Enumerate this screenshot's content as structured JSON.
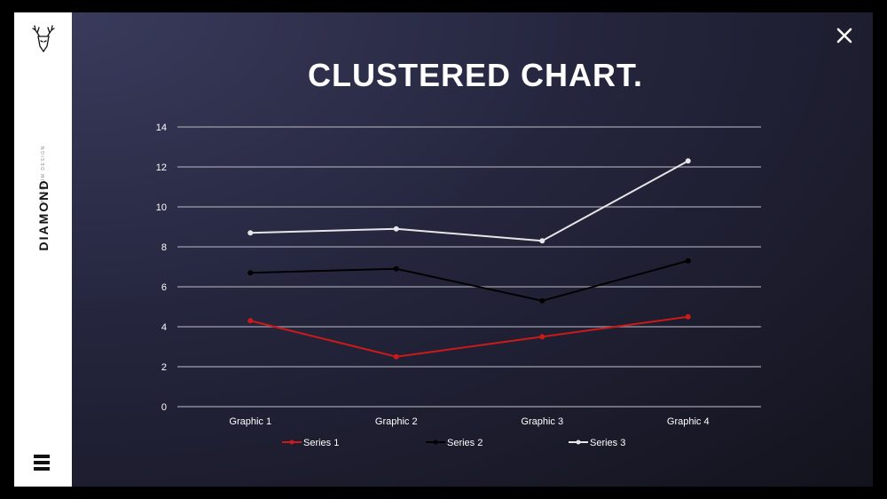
{
  "sidebar": {
    "logo_icon": "deer-head-icon",
    "brand": "DIAMOND",
    "tagline": "PREMIUM DESIGN",
    "menu_icon": "hamburger-menu-icon"
  },
  "header": {
    "title": "CLUSTERED CHART.",
    "close_icon": "close-icon"
  },
  "colors": {
    "series1": "#cc1a1a",
    "series2": "#000000",
    "series3": "#e6e6e6",
    "grid": "#8b8c99",
    "axis_text": "#ffffff"
  },
  "chart_data": {
    "type": "line",
    "title": "",
    "categories": [
      "Graphic 1",
      "Graphic 2",
      "Graphic 3",
      "Graphic 4"
    ],
    "ylim": [
      0,
      14
    ],
    "yticks": [
      "0",
      "2",
      "4",
      "6",
      "8",
      "10",
      "12",
      "14"
    ],
    "grid": true,
    "legend_position": "bottom",
    "series": [
      {
        "name": "Series 1",
        "values": [
          4.3,
          2.5,
          3.5,
          4.5
        ]
      },
      {
        "name": "Series 2",
        "values": [
          6.7,
          6.9,
          5.3,
          7.3
        ]
      },
      {
        "name": "Series 3",
        "values": [
          8.7,
          8.9,
          8.3,
          12.3
        ]
      }
    ]
  }
}
